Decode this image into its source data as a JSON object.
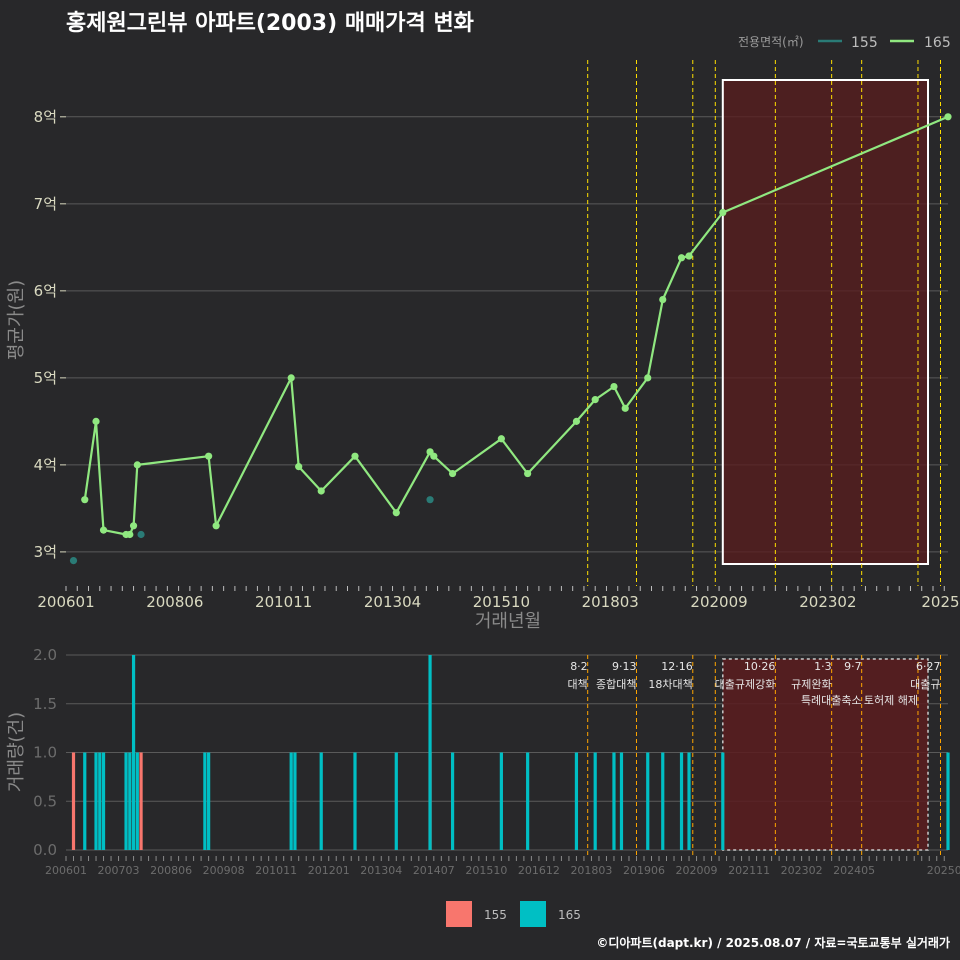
{
  "title": "홍제원그린뷰 아파트(2003) 매매가격 변화",
  "footer": "©디아파트(dapt.kr) / 2025.08.07 / 자료=국토교통부 실거래가",
  "colors": {
    "background": "#28282a",
    "series_155_line": "#2a7b76",
    "series_165_line": "#90e880",
    "bar_155": "#f8766d",
    "bar_165": "#00bfc4",
    "highlight_fill": "#5a1c1e",
    "event_line": "#ffdf00",
    "event_line_bottom": "#ffa500"
  },
  "top_chart": {
    "ylabel": "평균가(원)",
    "xlabel": "거래년월",
    "y_ticks": [
      "3억",
      "4억",
      "5억",
      "6억",
      "7억",
      "8억"
    ],
    "x_ticks": [
      "200601",
      "200806",
      "201011",
      "201304",
      "201510",
      "201803",
      "202009",
      "202302",
      "2025"
    ],
    "legend_title": "전용면적(㎡)",
    "legend_items": [
      "155",
      "165"
    ]
  },
  "bottom_chart": {
    "ylabel": "거래량(건)",
    "y_ticks": [
      "0.0",
      "0.5",
      "1.0",
      "1.5",
      "2.0"
    ],
    "x_ticks": [
      "200601",
      "200703",
      "200806",
      "200908",
      "201011",
      "201201",
      "201304",
      "201407",
      "201510",
      "201612",
      "201803",
      "201906",
      "202009",
      "202111",
      "202302",
      "202405",
      "20250"
    ],
    "legend_items": [
      "155",
      "165"
    ]
  },
  "events": [
    {
      "date": "2017-08",
      "date_label": "8·2",
      "label": "대책"
    },
    {
      "date": "2018-09",
      "date_label": "9·13",
      "label": "종합대책"
    },
    {
      "date": "2019-12",
      "date_label": "12·16",
      "label": "18차대책"
    },
    {
      "date": "2020-06",
      "date_label": "",
      "label": ""
    },
    {
      "date": "2021-10",
      "date_label": "10·26",
      "label": "대출규제강화"
    },
    {
      "date": "2023-01",
      "date_label": "1·3",
      "label": "규제완화"
    },
    {
      "date": "2023-09",
      "date_label": "9·7",
      "label": "특례대출축소"
    },
    {
      "date": "2024-12",
      "date_label": "",
      "label": "토허제 해제"
    },
    {
      "date": "2025-06",
      "date_label": "6·27",
      "label": "대출규"
    }
  ],
  "chart_data": [
    {
      "type": "line",
      "title": "홍제원그린뷰 아파트(2003) 매매가격 변화",
      "xlabel": "거래년월",
      "ylabel": "평균가(원)",
      "unit": "억",
      "ylim": [
        2.7,
        8.4
      ],
      "xlim": [
        "2006-01",
        "2025-08"
      ],
      "highlight_range": [
        "2020-08",
        "2025-08"
      ],
      "series": [
        {
          "name": "155",
          "points": [
            {
              "x": "2006-03",
              "y": 2.9
            },
            {
              "x": "2007-09",
              "y": 3.2
            },
            {
              "x": "2014-02",
              "y": 3.6
            }
          ]
        },
        {
          "name": "165",
          "points": [
            {
              "x": "2006-06",
              "y": 3.6
            },
            {
              "x": "2006-09",
              "y": 4.5
            },
            {
              "x": "2006-11",
              "y": 3.25
            },
            {
              "x": "2007-05",
              "y": 3.2
            },
            {
              "x": "2007-06",
              "y": 3.2
            },
            {
              "x": "2007-07",
              "y": 3.3
            },
            {
              "x": "2007-08",
              "y": 4.0
            },
            {
              "x": "2009-03",
              "y": 4.1
            },
            {
              "x": "2009-05",
              "y": 3.3
            },
            {
              "x": "2011-01",
              "y": 5.0
            },
            {
              "x": "2011-03",
              "y": 3.98
            },
            {
              "x": "2011-09",
              "y": 3.7
            },
            {
              "x": "2012-06",
              "y": 4.1
            },
            {
              "x": "2013-05",
              "y": 3.45
            },
            {
              "x": "2014-02",
              "y": 4.15
            },
            {
              "x": "2014-03",
              "y": 4.1
            },
            {
              "x": "2014-08",
              "y": 3.9
            },
            {
              "x": "2015-09",
              "y": 4.3
            },
            {
              "x": "2016-04",
              "y": 3.9
            },
            {
              "x": "2017-05",
              "y": 4.5
            },
            {
              "x": "2017-10",
              "y": 4.75
            },
            {
              "x": "2018-03",
              "y": 4.9
            },
            {
              "x": "2018-06",
              "y": 4.65
            },
            {
              "x": "2018-12",
              "y": 5.0
            },
            {
              "x": "2019-04",
              "y": 5.9
            },
            {
              "x": "2019-09",
              "y": 6.38
            },
            {
              "x": "2019-11",
              "y": 6.4
            },
            {
              "x": "2020-08",
              "y": 6.9
            },
            {
              "x": "2025-08",
              "y": 8.0
            }
          ]
        }
      ]
    },
    {
      "type": "bar",
      "ylabel": "거래량(건)",
      "ylim": [
        0,
        2
      ],
      "series": [
        {
          "name": "155",
          "bars": [
            {
              "x": "2006-03",
              "y": 1
            },
            {
              "x": "2007-09",
              "y": 1
            },
            {
              "x": "2014-02",
              "y": 1
            }
          ]
        },
        {
          "name": "165",
          "bars": [
            {
              "x": "2006-06",
              "y": 1
            },
            {
              "x": "2006-09",
              "y": 1
            },
            {
              "x": "2006-10",
              "y": 1
            },
            {
              "x": "2006-11",
              "y": 1
            },
            {
              "x": "2007-05",
              "y": 1
            },
            {
              "x": "2007-06",
              "y": 1
            },
            {
              "x": "2007-07",
              "y": 2
            },
            {
              "x": "2007-08",
              "y": 1
            },
            {
              "x": "2009-02",
              "y": 1
            },
            {
              "x": "2009-03",
              "y": 1
            },
            {
              "x": "2011-01",
              "y": 1
            },
            {
              "x": "2011-02",
              "y": 1
            },
            {
              "x": "2011-09",
              "y": 1
            },
            {
              "x": "2012-06",
              "y": 1
            },
            {
              "x": "2013-05",
              "y": 1
            },
            {
              "x": "2014-02",
              "y": 2
            },
            {
              "x": "2014-08",
              "y": 1
            },
            {
              "x": "2015-09",
              "y": 1
            },
            {
              "x": "2016-04",
              "y": 1
            },
            {
              "x": "2017-05",
              "y": 1
            },
            {
              "x": "2017-10",
              "y": 1
            },
            {
              "x": "2018-03",
              "y": 1
            },
            {
              "x": "2018-05",
              "y": 1
            },
            {
              "x": "2018-12",
              "y": 1
            },
            {
              "x": "2019-04",
              "y": 1
            },
            {
              "x": "2019-09",
              "y": 1
            },
            {
              "x": "2019-11",
              "y": 1
            },
            {
              "x": "2020-08",
              "y": 1
            },
            {
              "x": "2025-08",
              "y": 1
            }
          ]
        }
      ]
    }
  ]
}
